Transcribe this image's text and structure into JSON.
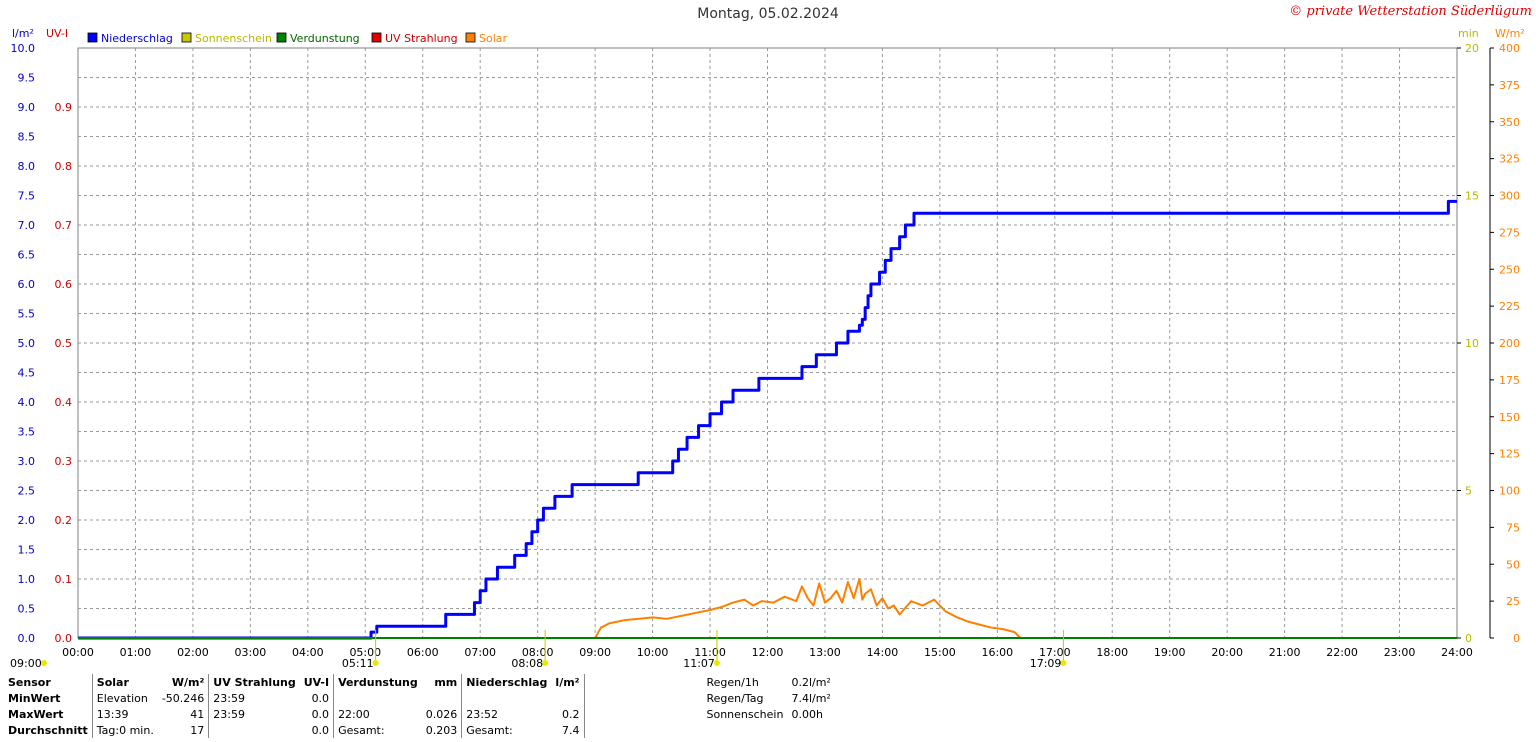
{
  "title": "Montag, 05.02.2024",
  "copyright": "© private Wetterstation Süderlügum",
  "colors": {
    "niederschlag": "#0000ff",
    "sonnenschein": "#c8c800",
    "verdunstung": "#008000",
    "uv": "#e00000",
    "solar": "#ff8000",
    "grid": "#9a9a9a"
  },
  "chart_data": {
    "type": "line",
    "title": "Montag, 05.02.2024",
    "legend": [
      "Niederschlag",
      "Sonnenschein",
      "Verdunstung",
      "UV Strahlung",
      "Solar"
    ],
    "legend_position": "top-left",
    "grid": true,
    "x_unit": "hours",
    "xlim": [
      0,
      24
    ],
    "x_ticks": [
      "00:00",
      "01:00",
      "02:00",
      "03:00",
      "04:00",
      "05:00",
      "06:00",
      "07:00",
      "08:00",
      "09:00",
      "10:00",
      "11:00",
      "12:00",
      "13:00",
      "14:00",
      "15:00",
      "16:00",
      "17:00",
      "18:00",
      "19:00",
      "20:00",
      "21:00",
      "22:00",
      "23:00",
      "24:00"
    ],
    "axes": {
      "rain": {
        "label": "l/m²",
        "ylim": [
          0,
          10
        ],
        "ticks": [
          "0.0",
          "0.5",
          "1.0",
          "1.5",
          "2.0",
          "2.5",
          "3.0",
          "3.5",
          "4.0",
          "4.5",
          "5.0",
          "5.5",
          "6.0",
          "6.5",
          "7.0",
          "7.5",
          "8.0",
          "8.5",
          "9.0",
          "9.5",
          "10.0"
        ]
      },
      "uv": {
        "label": "UV-I",
        "ylim": [
          0,
          1
        ],
        "ticks": [
          "0.0",
          "0.1",
          "0.2",
          "0.3",
          "0.4",
          "0.5",
          "0.6",
          "0.7",
          "0.8",
          "0.9"
        ]
      },
      "sun_min": {
        "label": "min",
        "ylim": [
          0,
          20
        ],
        "ticks": [
          "0",
          "5",
          "10",
          "15",
          "20"
        ]
      },
      "solar": {
        "label": "W/m²",
        "ylim": [
          0,
          400
        ],
        "ticks": [
          "0",
          "25",
          "50",
          "75",
          "100",
          "125",
          "150",
          "175",
          "200",
          "225",
          "250",
          "275",
          "300",
          "325",
          "350",
          "375",
          "400"
        ]
      }
    },
    "series": [
      {
        "name": "Niederschlag",
        "axis": "rain",
        "step": true,
        "x": [
          0,
          5.1,
          5.2,
          6.4,
          6.9,
          7.0,
          7.1,
          7.3,
          7.6,
          7.8,
          7.9,
          8.0,
          8.1,
          8.3,
          8.6,
          9.75,
          10.35,
          10.45,
          10.6,
          10.8,
          11.0,
          11.2,
          11.4,
          11.85,
          12.6,
          12.85,
          13.2,
          13.4,
          13.6,
          13.65,
          13.7,
          13.75,
          13.8,
          13.95,
          14.05,
          14.15,
          14.3,
          14.4,
          14.55,
          14.85,
          23.85,
          24.0
        ],
        "values": [
          0.0,
          0.1,
          0.2,
          0.4,
          0.6,
          0.8,
          1.0,
          1.2,
          1.4,
          1.6,
          1.8,
          2.0,
          2.2,
          2.4,
          2.6,
          2.8,
          3.0,
          3.2,
          3.4,
          3.6,
          3.8,
          4.0,
          4.2,
          4.4,
          4.6,
          4.8,
          5.0,
          5.2,
          5.3,
          5.4,
          5.6,
          5.8,
          6.0,
          6.2,
          6.4,
          6.6,
          6.8,
          7.0,
          7.2,
          7.2,
          7.4,
          7.4
        ]
      },
      {
        "name": "Solar",
        "axis": "solar",
        "x": [
          9.0,
          9.1,
          9.25,
          9.5,
          9.75,
          10.0,
          10.25,
          10.5,
          10.75,
          11.0,
          11.2,
          11.4,
          11.6,
          11.75,
          11.9,
          12.1,
          12.3,
          12.5,
          12.6,
          12.7,
          12.8,
          12.9,
          13.0,
          13.1,
          13.2,
          13.3,
          13.4,
          13.5,
          13.6,
          13.65,
          13.7,
          13.8,
          13.9,
          14.0,
          14.1,
          14.2,
          14.3,
          14.5,
          14.7,
          14.9,
          15.1,
          15.3,
          15.5,
          15.7,
          15.9,
          16.1,
          16.3,
          16.4
        ],
        "values": [
          0,
          7,
          10,
          12,
          13,
          14,
          13,
          15,
          17,
          19,
          21,
          24,
          26,
          22,
          25,
          24,
          28,
          25,
          35,
          27,
          22,
          37,
          24,
          27,
          32,
          24,
          38,
          27,
          40,
          26,
          30,
          33,
          22,
          27,
          20,
          22,
          16,
          25,
          22,
          26,
          18,
          14,
          11,
          9,
          7,
          6,
          4,
          0
        ]
      },
      {
        "name": "Verdunstung",
        "axis": "rain",
        "x": [
          0,
          24
        ],
        "values": [
          0,
          0
        ]
      }
    ],
    "markers": [
      {
        "label": "05:11",
        "x": 5.18
      },
      {
        "label": "08:08",
        "x": 8.13
      },
      {
        "label": "11:07",
        "x": 11.12
      },
      {
        "label": "17:09",
        "x": 17.15
      }
    ],
    "start_label": "09:00"
  },
  "summary": {
    "sensor": {
      "header": "Sensor",
      "rows": [
        "MinWert",
        "MaxWert",
        "Durchschnitt"
      ]
    },
    "solar": {
      "header": "Solar",
      "unit": "W/m²",
      "min_label": "Elevation",
      "min_value": "-50.246",
      "max_label": "13:39",
      "max_value": "41",
      "avg_label": "Tag:0 min.",
      "avg_value": "17"
    },
    "uv": {
      "header": "UV Strahlung",
      "unit": "UV-I",
      "min_label": "23:59",
      "min_value": "0.0",
      "max_label": "23:59",
      "max_value": "0.0",
      "avg_value": "0.0"
    },
    "verdunstung": {
      "header": "Verdunstung",
      "unit": "mm",
      "max_label": "22:00",
      "max_value": "0.026",
      "avg_label": "Gesamt:",
      "avg_value": "0.203"
    },
    "niederschlag": {
      "header": "Niederschlag",
      "unit": "l/m²",
      "max_label": "23:52",
      "max_value": "0.2",
      "avg_label": "Gesamt:",
      "avg_value": "7.4"
    },
    "extra": [
      {
        "label": "Regen/1h",
        "value": "0.2l/m²"
      },
      {
        "label": "Regen/Tag",
        "value": "7.4l/m²"
      },
      {
        "label": "Sonnenschein",
        "value": "0.00h"
      }
    ]
  }
}
